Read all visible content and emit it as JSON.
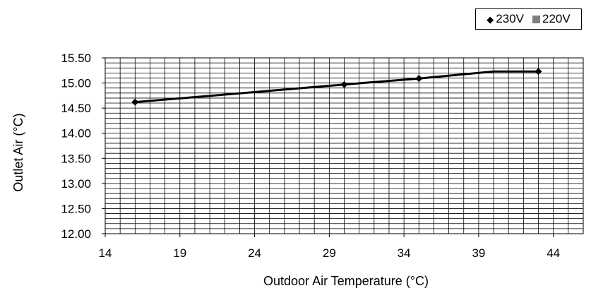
{
  "chart_data": {
    "type": "line",
    "xlabel": "Outdoor Air Temperature (°C)",
    "ylabel": "Outlet Air (°C)",
    "xlim": [
      14,
      46
    ],
    "ylim": [
      12.0,
      15.5
    ],
    "x_ticks": [
      "14",
      "19",
      "24",
      "29",
      "34",
      "39",
      "44"
    ],
    "y_ticks": [
      "12.00",
      "12.50",
      "13.00",
      "13.50",
      "14.00",
      "14.50",
      "15.00",
      "15.50"
    ],
    "grid": true,
    "legend_position": "top-right",
    "series": [
      {
        "name": "230V",
        "marker": "diamond",
        "color": "#000000",
        "points": [
          {
            "x": 16,
            "y": 14.62
          },
          {
            "x": 30,
            "y": 14.97
          },
          {
            "x": 35,
            "y": 15.09
          },
          {
            "x": 40,
            "y": 15.23
          },
          {
            "x": 43,
            "y": 15.23
          }
        ],
        "marker_points": [
          {
            "x": 16,
            "y": 14.62
          },
          {
            "x": 30,
            "y": 14.97
          },
          {
            "x": 35,
            "y": 15.09
          },
          {
            "x": 43,
            "y": 15.23
          }
        ]
      },
      {
        "name": "220V",
        "marker": "square",
        "color": "#808080",
        "points": []
      }
    ]
  }
}
